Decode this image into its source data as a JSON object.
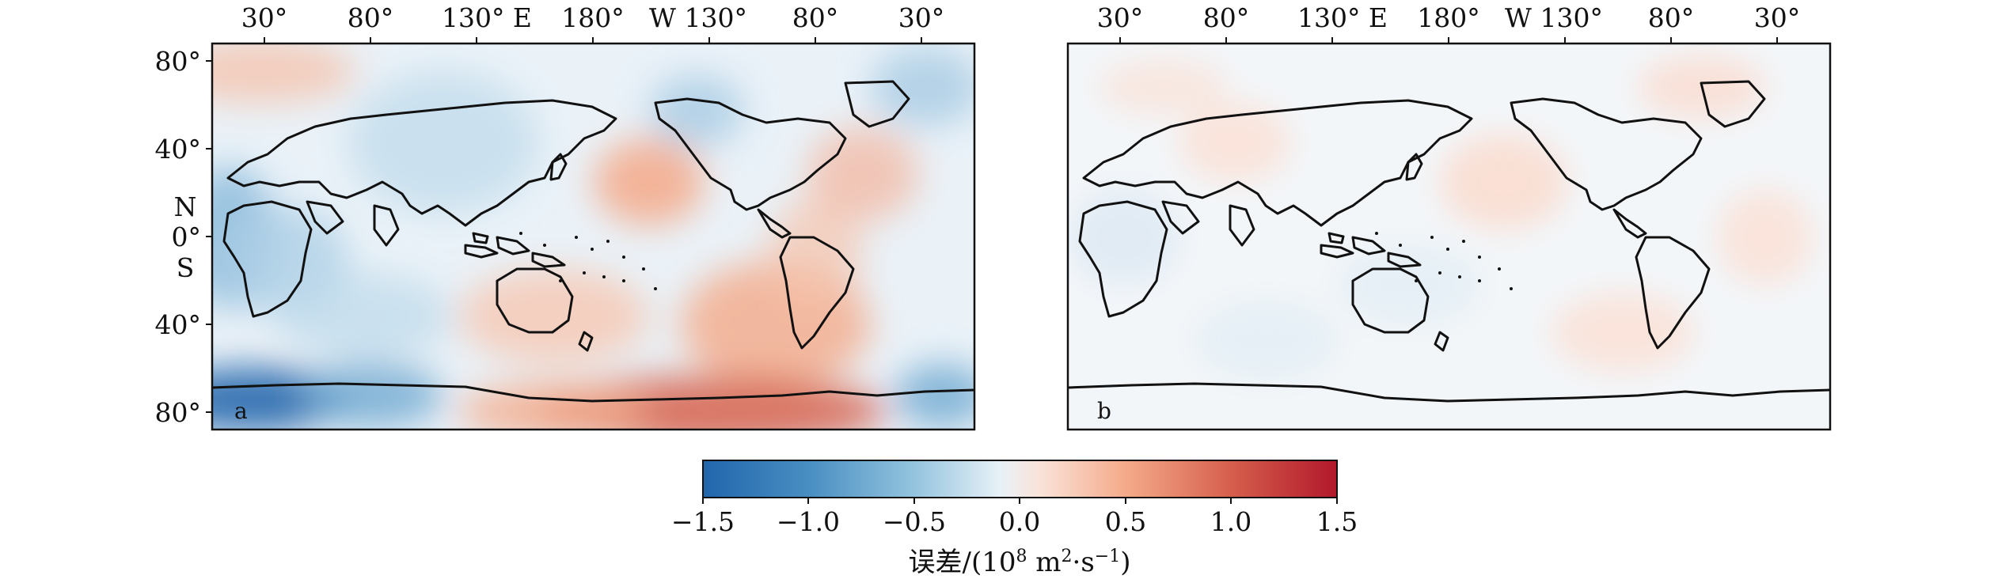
{
  "maps": [
    {
      "panel_label": "a",
      "lon_ticks": [
        "30°",
        "80°",
        "130° E",
        "180°",
        "W 130°",
        "80°",
        "30°"
      ],
      "lat_ticks": [
        "80°",
        "40°",
        "0°",
        "40°",
        "80°"
      ],
      "lat_hemisphere_labels": [
        "N",
        "S"
      ]
    },
    {
      "panel_label": "b",
      "lon_ticks": [
        "30°",
        "80°",
        "130° E",
        "180°",
        "W 130°",
        "80°",
        "30°"
      ]
    }
  ],
  "colorbar": {
    "ticks": [
      "−1.5",
      "−1.0",
      "−0.5",
      "0.0",
      "0.5",
      "1.0",
      "1.5"
    ],
    "range": [
      -1.5,
      1.5
    ],
    "colors_negative": "#2166ac",
    "colors_positive": "#b2182b",
    "label": {
      "main": "误差/(10",
      "exp1": "8",
      "mid": " m",
      "exp2": "2",
      "dot": "·s",
      "exp3": "−1",
      "close": ")"
    }
  }
}
